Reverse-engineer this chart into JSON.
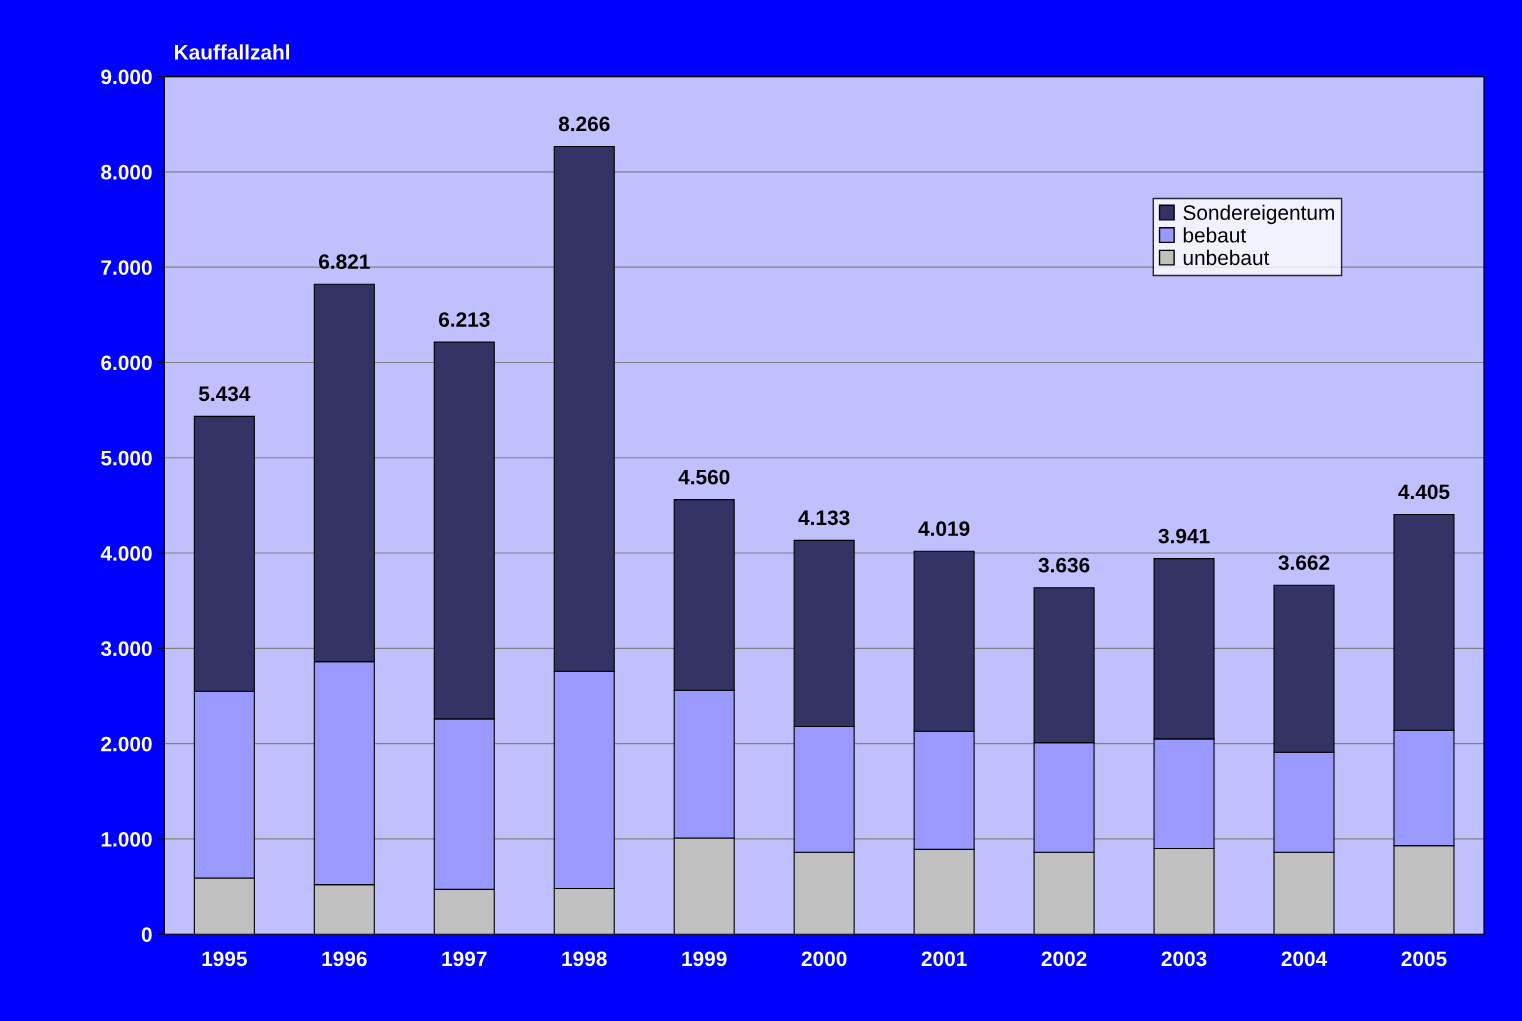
{
  "chart_data": {
    "type": "bar",
    "stacked": true,
    "ylabel": "Kauffallzahl",
    "categories": [
      "1995",
      "1996",
      "1997",
      "1998",
      "1999",
      "2000",
      "2001",
      "2002",
      "2003",
      "2004",
      "2005"
    ],
    "series": [
      {
        "name": "unbebaut",
        "color": "#c0c0c0",
        "values": [
          590,
          520,
          470,
          480,
          1010,
          860,
          890,
          860,
          900,
          860,
          930
        ]
      },
      {
        "name": "bebaut",
        "color": "#9999ff",
        "values": [
          1960,
          2340,
          1790,
          2280,
          1550,
          1320,
          1240,
          1150,
          1150,
          1050,
          1210
        ]
      },
      {
        "name": "Sondereigentum",
        "color": "#333366",
        "values": [
          2884,
          3961,
          3953,
          5506,
          2000,
          1953,
          1889,
          1626,
          1891,
          1752,
          2265
        ]
      }
    ],
    "totals": [
      "5.434",
      "6.821",
      "6.213",
      "8.266",
      "4.560",
      "4.133",
      "4.019",
      "3.636",
      "3.941",
      "3.662",
      "4.405"
    ],
    "ylim": [
      0,
      9000
    ],
    "yticks": [
      {
        "value": 0,
        "label": "0"
      },
      {
        "value": 1000,
        "label": "1.000"
      },
      {
        "value": 2000,
        "label": "2.000"
      },
      {
        "value": 3000,
        "label": "3.000"
      },
      {
        "value": 4000,
        "label": "4.000"
      },
      {
        "value": 5000,
        "label": "5.000"
      },
      {
        "value": 6000,
        "label": "6.000"
      },
      {
        "value": 7000,
        "label": "7.000"
      },
      {
        "value": 8000,
        "label": "8.000"
      },
      {
        "value": 9000,
        "label": "9.000"
      }
    ],
    "grid": "y",
    "legend": "top right"
  }
}
